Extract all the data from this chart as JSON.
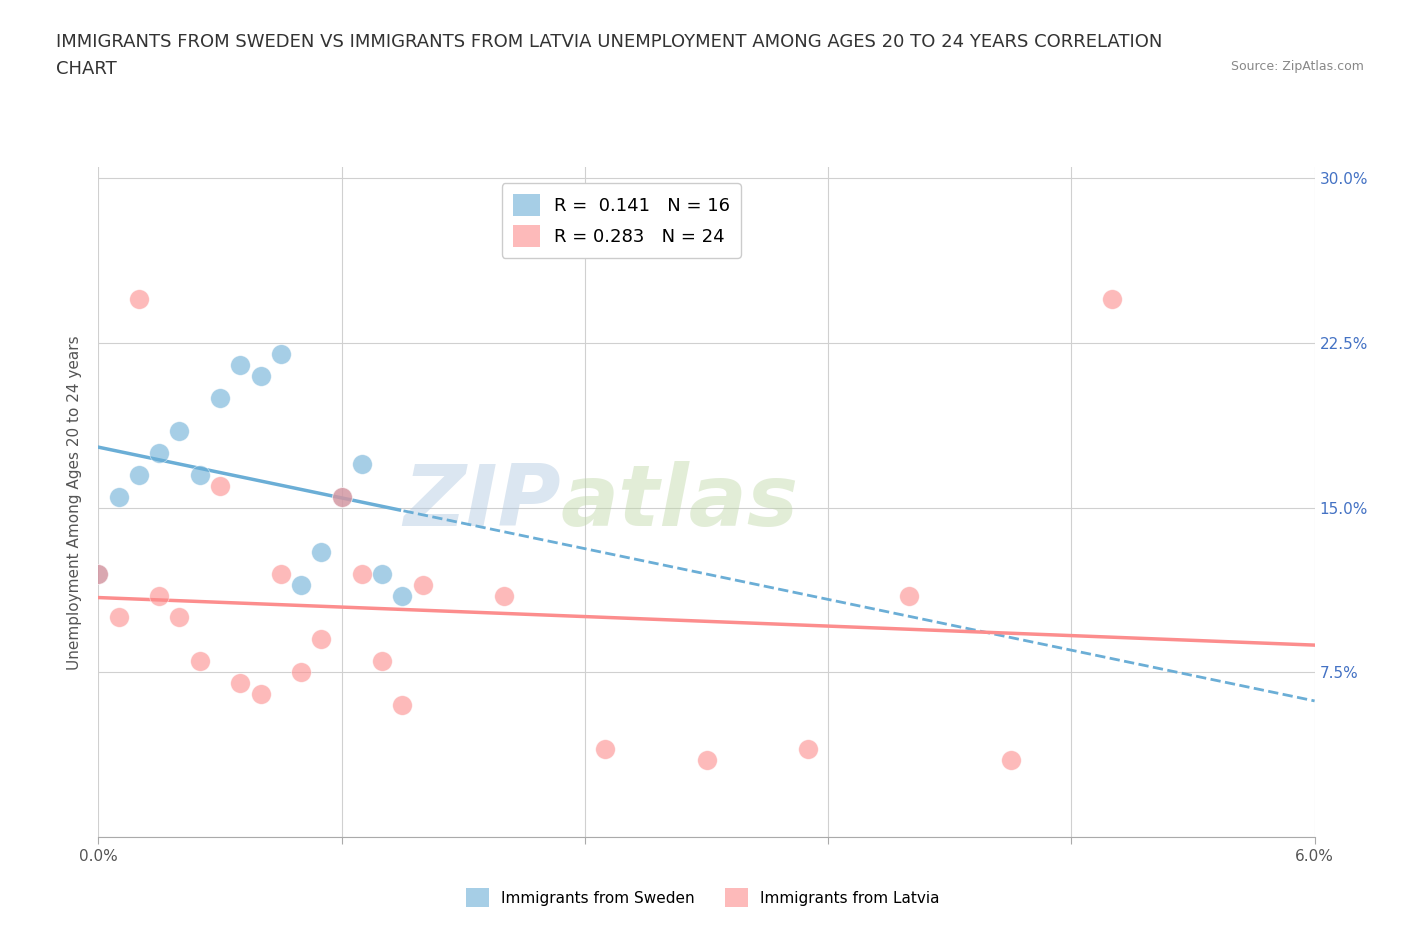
{
  "title_line1": "IMMIGRANTS FROM SWEDEN VS IMMIGRANTS FROM LATVIA UNEMPLOYMENT AMONG AGES 20 TO 24 YEARS CORRELATION",
  "title_line2": "CHART",
  "source_text": "Source: ZipAtlas.com",
  "ylabel": "Unemployment Among Ages 20 to 24 years",
  "xlim": [
    0.0,
    0.06
  ],
  "ylim": [
    0.0,
    0.305
  ],
  "xtick_vals": [
    0.0,
    0.012,
    0.024,
    0.036,
    0.048,
    0.06
  ],
  "ytick_vals": [
    0.0,
    0.075,
    0.15,
    0.225,
    0.3
  ],
  "sweden_color": "#6baed6",
  "latvia_color": "#fc8d8d",
  "sweden_r": 0.141,
  "sweden_n": 16,
  "latvia_r": 0.283,
  "latvia_n": 24,
  "legend_label_sweden": "Immigrants from Sweden",
  "legend_label_latvia": "Immigrants from Latvia",
  "watermark_text": "ZIP",
  "watermark_text2": "atlas",
  "sweden_x": [
    0.0,
    0.001,
    0.002,
    0.003,
    0.004,
    0.005,
    0.006,
    0.007,
    0.008,
    0.009,
    0.01,
    0.011,
    0.012,
    0.013,
    0.014,
    0.015
  ],
  "sweden_y": [
    0.12,
    0.155,
    0.165,
    0.175,
    0.185,
    0.165,
    0.2,
    0.215,
    0.21,
    0.22,
    0.115,
    0.13,
    0.155,
    0.17,
    0.12,
    0.11
  ],
  "latvia_x": [
    0.0,
    0.001,
    0.002,
    0.003,
    0.004,
    0.005,
    0.006,
    0.007,
    0.008,
    0.009,
    0.01,
    0.011,
    0.012,
    0.013,
    0.014,
    0.015,
    0.016,
    0.02,
    0.025,
    0.03,
    0.035,
    0.04,
    0.045,
    0.05
  ],
  "latvia_y": [
    0.12,
    0.1,
    0.245,
    0.11,
    0.1,
    0.08,
    0.16,
    0.07,
    0.065,
    0.12,
    0.075,
    0.09,
    0.155,
    0.12,
    0.08,
    0.06,
    0.115,
    0.11,
    0.04,
    0.035,
    0.04,
    0.11,
    0.035,
    0.245
  ],
  "grid_color": "#d0d0d0",
  "background_color": "#ffffff",
  "right_ytick_color": "#4472c4"
}
